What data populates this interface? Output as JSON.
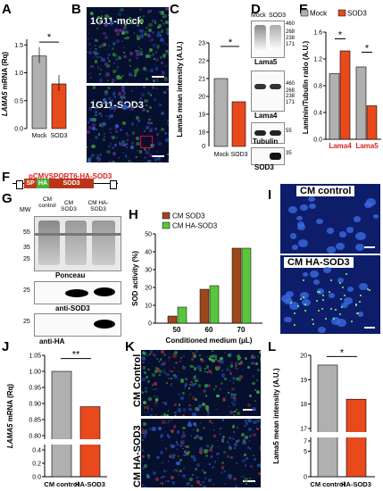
{
  "panels": {
    "A": {
      "letter": "A",
      "ylabel_gene": "LAMA5",
      "ylabel_rest": " mRNA (Rq)",
      "yticks": [
        "0.0",
        "0.5",
        "1.0",
        "1.5"
      ],
      "sig": "*"
    },
    "B": {
      "letter": "B",
      "top_label": "1G11-mock",
      "bottom_label": "1G11-SOD3"
    },
    "C": {
      "letter": "C",
      "ylabel": "Lama5 mean intensity (A.U.)",
      "yticks": [
        "18",
        "19",
        "20",
        "21",
        "22",
        "23"
      ],
      "ybreak": "0",
      "sig": "*"
    },
    "D": {
      "letter": "D",
      "lanes": [
        "Mock",
        "SOD3"
      ],
      "blot1": "Lama5",
      "blot2": "Lama4",
      "blot3": "Tubulin",
      "blot4": "SOD3",
      "mw1": [
        "460",
        "268",
        "238",
        "171"
      ],
      "mw2": [
        "460",
        "268",
        "238",
        "171"
      ],
      "mw3": [
        "55"
      ],
      "mw4": [
        "35"
      ]
    },
    "E": {
      "letter": "E",
      "ylabel": "Laminin/Tubulin ratio (A.U.)",
      "yticks": [
        "0.0",
        "0.4",
        "0.8",
        "1.2",
        "1.6"
      ],
      "legend": [
        "Mock",
        "SOD3"
      ],
      "sig1": "*",
      "sig2": "*"
    },
    "F": {
      "letter": "F",
      "construct": "pCMVSPORT6-HA-SOD3",
      "seg_sp": "SP",
      "seg_ha": "HA",
      "seg_sod3": "SOD3"
    },
    "G": {
      "letter": "G",
      "mw_title": "MW",
      "lanes": [
        "CM control",
        "CM SOD3",
        "CM HA-SOD3"
      ],
      "mw1": [
        "55",
        "35",
        "25"
      ],
      "ponceau": "Ponceau",
      "mw2": [
        "25"
      ],
      "anti_sod3": "anti-SOD3",
      "mw3": [
        "25"
      ],
      "anti_ha": "anti-HA"
    },
    "H": {
      "letter": "H",
      "ylabel": "SOD activity (%)",
      "xlabel": "Conditioned medium (μL)",
      "legend": [
        "CM SOD3",
        "CM HA-SOD3"
      ],
      "yticks": [
        "0",
        "10",
        "20",
        "30",
        "40",
        "50"
      ]
    },
    "I": {
      "letter": "I",
      "top_label": "CM control",
      "bottom_label": "CM HA-SOD3"
    },
    "J": {
      "letter": "J",
      "ylabel_gene": "LAMA5",
      "ylabel_rest": " mRNA (Rq)",
      "yticks": [
        "0.0",
        "0.2",
        "0.4",
        "0.80",
        "0.85",
        "0.90",
        "0.95",
        "1.00",
        "1.05"
      ],
      "sig": "**"
    },
    "K": {
      "letter": "K",
      "top_label": "CM Control",
      "bottom_label": "CM HA-SOD3"
    },
    "L": {
      "letter": "L",
      "ylabel": "Lama5 mean intensity (A.U.)",
      "yticks": [
        "0",
        "5",
        "7",
        "17",
        "18",
        "19",
        "20"
      ],
      "sig": "*"
    }
  },
  "chart_data": [
    {
      "type": "bar",
      "panel": "A",
      "categories": [
        "Mock",
        "SOD3"
      ],
      "values": [
        1.3,
        0.8
      ],
      "ylim": [
        0,
        1.6
      ],
      "colors": [
        "#b0b0b0",
        "#e84a1c"
      ]
    },
    {
      "type": "bar",
      "panel": "C",
      "categories": [
        "Mock",
        "SOD3"
      ],
      "values": [
        21.0,
        19.7
      ],
      "ylim": [
        18,
        23
      ],
      "colors": [
        "#b0b0b0",
        "#e84a1c"
      ]
    },
    {
      "type": "bar",
      "panel": "E",
      "categories": [
        "Lama4",
        "Lama5"
      ],
      "series": [
        {
          "name": "Mock",
          "values": [
            0.98,
            1.08
          ]
        },
        {
          "name": "SOD3",
          "values": [
            1.32,
            0.5
          ]
        }
      ],
      "ylim": [
        0,
        1.6
      ],
      "colors": [
        "#b0b0b0",
        "#e84a1c"
      ]
    },
    {
      "type": "bar",
      "panel": "H",
      "categories": [
        "50",
        "60",
        "70"
      ],
      "series": [
        {
          "name": "CM SOD3",
          "values": [
            4,
            19,
            42
          ]
        },
        {
          "name": "CM HA-SOD3",
          "values": [
            9,
            21,
            42
          ]
        }
      ],
      "ylim": [
        0,
        50
      ],
      "colors": [
        "#a0461c",
        "#5ac43a"
      ]
    },
    {
      "type": "bar",
      "panel": "J",
      "categories": [
        "CM control",
        "HA-SOD3"
      ],
      "values": [
        1.0,
        0.89
      ],
      "ylim": [
        0,
        1.05
      ],
      "colors": [
        "#b0b0b0",
        "#e84a1c"
      ]
    },
    {
      "type": "bar",
      "panel": "L",
      "categories": [
        "CM control",
        "HA-SOD3"
      ],
      "values": [
        19.6,
        18.2
      ],
      "ylim": [
        0,
        20
      ],
      "colors": [
        "#b0b0b0",
        "#e84a1c"
      ]
    }
  ]
}
